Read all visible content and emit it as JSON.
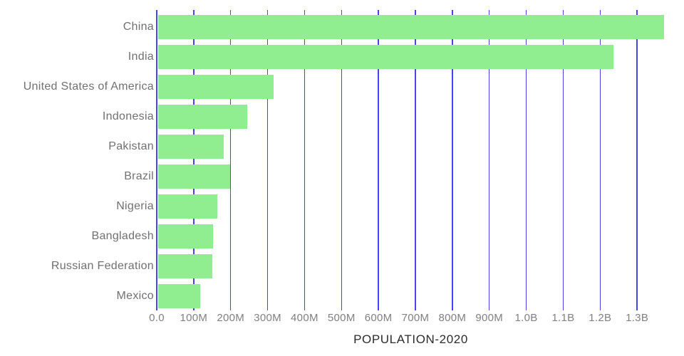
{
  "chart_data": {
    "type": "bar",
    "orientation": "horizontal",
    "title": "",
    "xlabel": "POPULATION-2020",
    "ylabel": "",
    "legend": "none",
    "grid": "vertical-gridlines-only",
    "categories": [
      "China",
      "India",
      "United States of America",
      "Indonesia",
      "Pakistan",
      "Brazil",
      "Nigeria",
      "Bangladesh",
      "Russian Federation",
      "Mexico"
    ],
    "values": [
      1375000000,
      1238000000,
      314000000,
      243000000,
      179000000,
      195000000,
      160000000,
      150000000,
      148000000,
      115000000
    ],
    "values_millions": [
      1375,
      1238,
      314,
      243,
      179,
      195,
      160,
      150,
      148,
      115
    ],
    "xlim": [
      0,
      1375000000
    ],
    "x_ticks": [
      {
        "value": 0,
        "label": "0.0"
      },
      {
        "value": 100000000,
        "label": "100M"
      },
      {
        "value": 200000000,
        "label": "200M"
      },
      {
        "value": 300000000,
        "label": "300M"
      },
      {
        "value": 400000000,
        "label": "400M"
      },
      {
        "value": 500000000,
        "label": "500M"
      },
      {
        "value": 600000000,
        "label": "600M"
      },
      {
        "value": 700000000,
        "label": "700M"
      },
      {
        "value": 800000000,
        "label": "800M"
      },
      {
        "value": 900000000,
        "label": "900M"
      },
      {
        "value": 1000000000,
        "label": "1.0B"
      },
      {
        "value": 1100000000,
        "label": "1.1B"
      },
      {
        "value": 1200000000,
        "label": "1.2B"
      },
      {
        "value": 1300000000,
        "label": "1.3B"
      }
    ],
    "colors": {
      "background": "#FFFFFF",
      "bar": "#90EE90",
      "gridline": "#4545EE",
      "category_label": "#707070",
      "tick_label": "#808080",
      "axis_title": "#2B2B2B"
    }
  }
}
